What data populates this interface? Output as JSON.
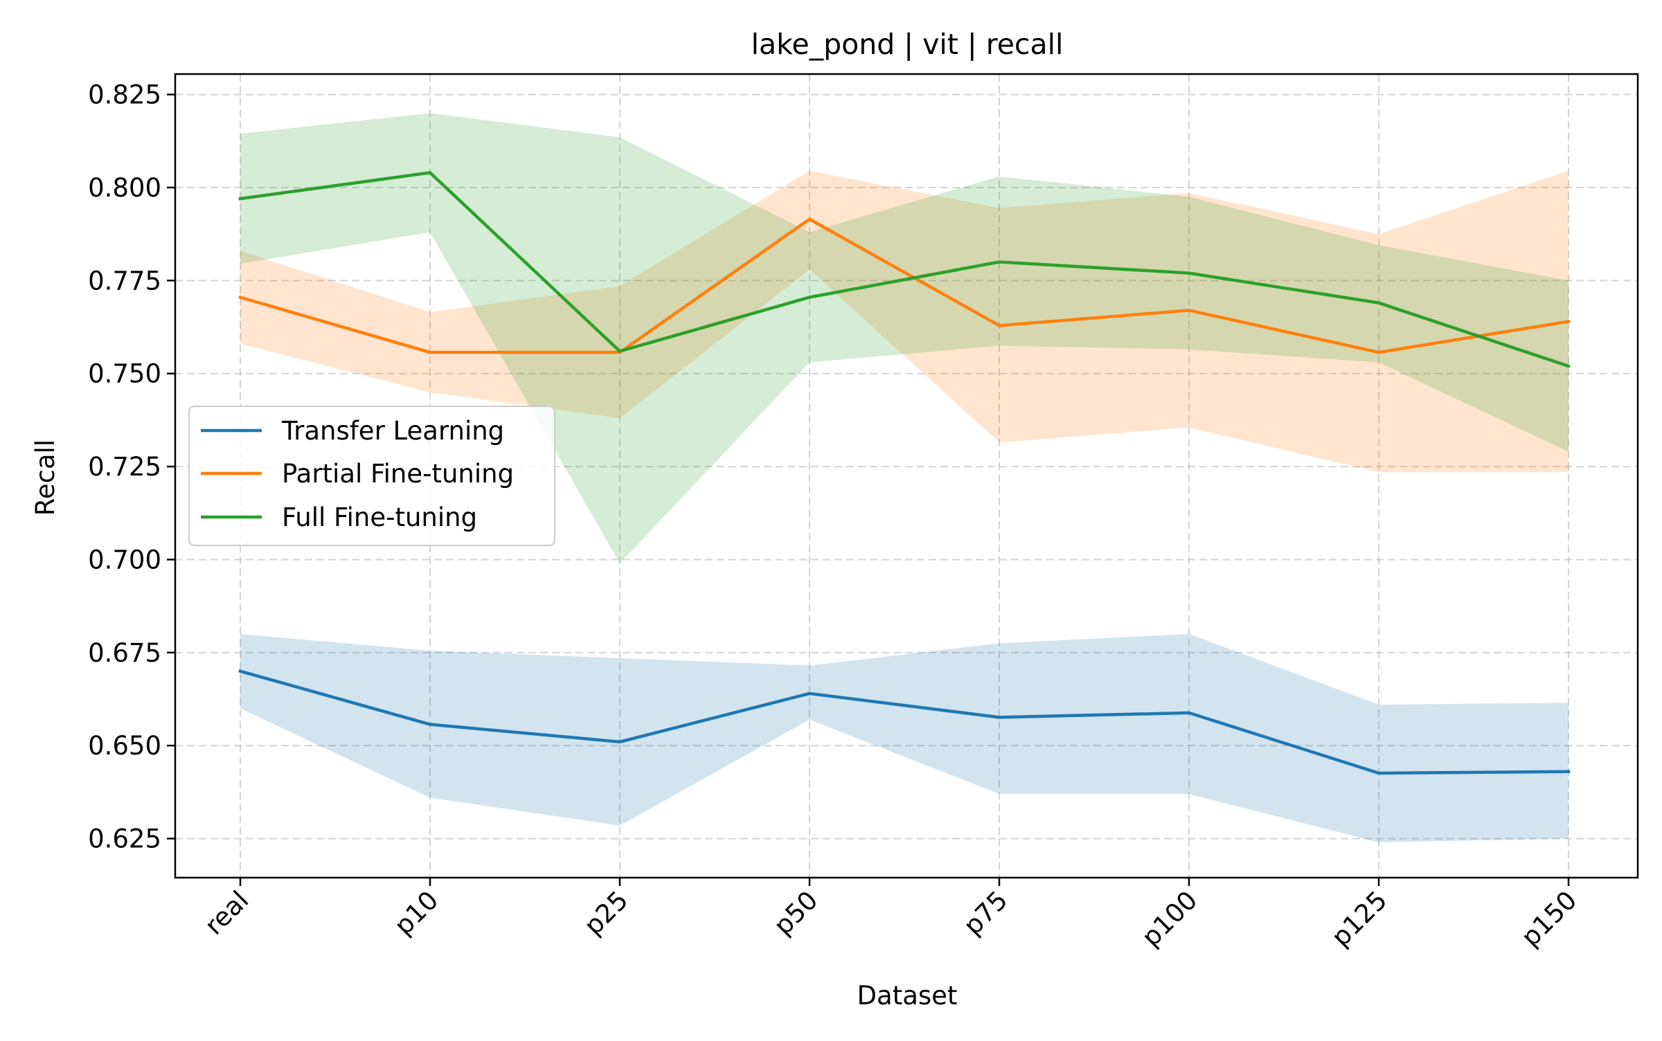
{
  "chart_data": {
    "type": "line",
    "title": "lake_pond | vit | recall",
    "xlabel": "Dataset",
    "ylabel": "Recall",
    "categories": [
      "real",
      "p10",
      "p25",
      "p50",
      "p75",
      "p100",
      "p125",
      "p150"
    ],
    "ylim": [
      0.6145,
      0.8305
    ],
    "yticks": [
      0.625,
      0.65,
      0.675,
      0.7,
      0.725,
      0.75,
      0.775,
      0.8,
      0.825
    ],
    "ytick_labels": [
      "0.625",
      "0.650",
      "0.675",
      "0.700",
      "0.725",
      "0.750",
      "0.775",
      "0.800",
      "0.825"
    ],
    "grid": true,
    "legend_position": "center-left",
    "series": [
      {
        "name": "Transfer Learning",
        "color": "#1f77b4",
        "values": [
          0.67,
          0.6557,
          0.651,
          0.664,
          0.6576,
          0.6588,
          0.6426,
          0.643
        ],
        "lower": [
          0.66,
          0.636,
          0.6285,
          0.657,
          0.637,
          0.637,
          0.624,
          0.625
        ],
        "upper": [
          0.68,
          0.6755,
          0.6735,
          0.6715,
          0.6775,
          0.68,
          0.661,
          0.6615
        ]
      },
      {
        "name": "Partial Fine-tuning",
        "color": "#ff7f0e",
        "values": [
          0.7705,
          0.7557,
          0.7557,
          0.7915,
          0.7629,
          0.767,
          0.7557,
          0.764
        ],
        "lower": [
          0.758,
          0.745,
          0.738,
          0.778,
          0.7315,
          0.7355,
          0.7235,
          0.7235
        ],
        "upper": [
          0.783,
          0.7665,
          0.7735,
          0.8045,
          0.7945,
          0.7985,
          0.7875,
          0.8045
        ]
      },
      {
        "name": "Full Fine-tuning",
        "color": "#2ca02c",
        "values": [
          0.797,
          0.804,
          0.756,
          0.7705,
          0.78,
          0.777,
          0.769,
          0.752
        ],
        "lower": [
          0.7795,
          0.788,
          0.699,
          0.753,
          0.7575,
          0.7565,
          0.753,
          0.729
        ],
        "upper": [
          0.8145,
          0.82,
          0.8135,
          0.788,
          0.803,
          0.7975,
          0.7845,
          0.775
        ]
      }
    ]
  }
}
